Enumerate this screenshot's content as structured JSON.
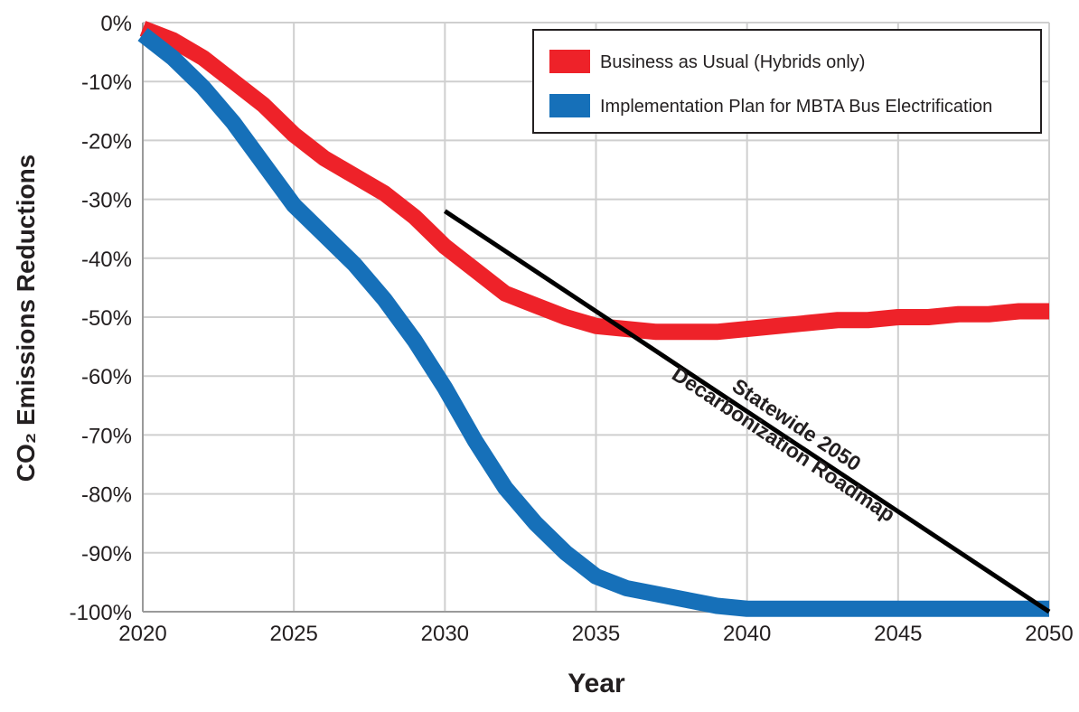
{
  "chart_data": {
    "type": "line",
    "x_label": "Year",
    "y_label": "CO₂ Emissions Reductions",
    "x": [
      2020,
      2021,
      2022,
      2023,
      2024,
      2025,
      2026,
      2027,
      2028,
      2029,
      2030,
      2031,
      2032,
      2033,
      2034,
      2035,
      2036,
      2037,
      2038,
      2039,
      2040,
      2041,
      2042,
      2043,
      2044,
      2045,
      2046,
      2047,
      2048,
      2049,
      2050
    ],
    "series": [
      {
        "name": "Business as Usual (Hybrids only)",
        "color": "#ee2229",
        "values": [
          -1,
          -3,
          -6,
          -10,
          -14,
          -19,
          -23,
          -26,
          -29,
          -33,
          -38,
          -42,
          -46,
          -48,
          -50,
          -51.5,
          -52,
          -52.5,
          -52.5,
          -52.5,
          -52,
          -51.5,
          -51,
          -50.5,
          -50.5,
          -50,
          -50,
          -49.5,
          -49.5,
          -49,
          -49
        ]
      },
      {
        "name": "Implementation Plan for MBTA Bus Electrification",
        "color": "#1670b9",
        "values": [
          -2,
          -6,
          -11,
          -17,
          -24,
          -31,
          -36,
          -41,
          -47,
          -54,
          -62,
          -71,
          -79,
          -85,
          -90,
          -94,
          -96,
          -97,
          -98,
          -99,
          -99.5,
          -99.5,
          -99.5,
          -99.5,
          -99.5,
          -99.5,
          -99.5,
          -99.5,
          -99.5,
          -99.5,
          -99.5
        ]
      }
    ],
    "roadmap": {
      "label": [
        "Statewide 2050",
        "Decarbonization Roadmap"
      ],
      "color": "#000000",
      "x": [
        2030,
        2050
      ],
      "values": [
        -32,
        -100
      ]
    },
    "xlim": [
      2020,
      2050
    ],
    "xticks": [
      2020,
      2025,
      2030,
      2035,
      2040,
      2045,
      2050
    ],
    "ylim": [
      -100,
      0
    ],
    "yticks": [
      {
        "value": 0,
        "label": "0%"
      },
      {
        "value": -10,
        "label": "-10%"
      },
      {
        "value": -20,
        "label": "-20%"
      },
      {
        "value": -30,
        "label": "-30%"
      },
      {
        "value": -40,
        "label": "-40%"
      },
      {
        "value": -50,
        "label": "-50%"
      },
      {
        "value": -60,
        "label": "-60%"
      },
      {
        "value": -70,
        "label": "-70%"
      },
      {
        "value": -80,
        "label": "-80%"
      },
      {
        "value": -90,
        "label": "-90%"
      },
      {
        "value": -100,
        "label": "-100%"
      }
    ],
    "grid": true
  }
}
